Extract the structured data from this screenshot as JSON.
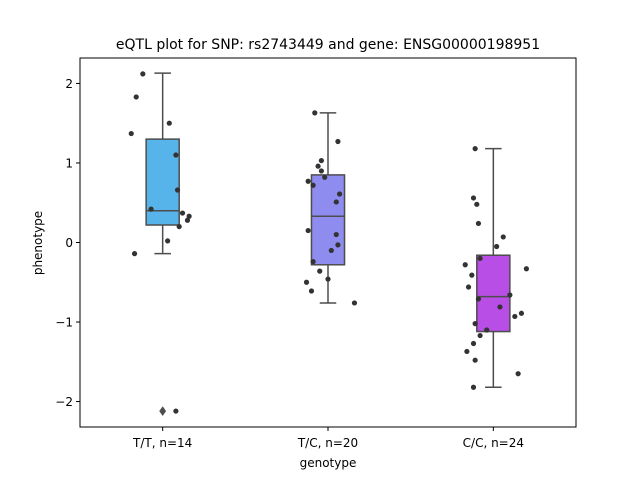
{
  "chart_data": {
    "type": "box",
    "title": "eQTL plot for SNP: rs2743449 and gene: ENSG00000198951",
    "xlabel": "genotype",
    "ylabel": "phenotype",
    "ylim": [
      -2.32,
      2.32
    ],
    "yticks": [
      -2,
      -1,
      0,
      1,
      2
    ],
    "ytick_labels": [
      "−2",
      "−1",
      "0",
      "1",
      "2"
    ],
    "grid": false,
    "categories": [
      "T/T, n=14",
      "T/C, n=20",
      "C/C, n=24"
    ],
    "boxes": [
      {
        "category": "T/T, n=14",
        "color": "#56b4ea",
        "q1": 0.22,
        "median": 0.4,
        "q3": 1.3,
        "whisker_low": -0.14,
        "whisker_high": 2.13,
        "outliers": [
          -2.12
        ]
      },
      {
        "category": "T/C, n=20",
        "color": "#8f8cf0",
        "q1": -0.28,
        "median": 0.33,
        "q3": 0.85,
        "whisker_low": -0.76,
        "whisker_high": 1.63,
        "outliers": []
      },
      {
        "category": "C/C, n=24",
        "color": "#b84ee6",
        "q1": -1.12,
        "median": -0.68,
        "q3": -0.16,
        "whisker_low": -1.82,
        "whisker_high": 1.18,
        "outliers": []
      }
    ],
    "points": [
      {
        "category": "T/T, n=14",
        "values": [
          2.12,
          1.83,
          1.5,
          1.37,
          1.1,
          0.66,
          0.42,
          0.37,
          0.33,
          0.28,
          0.2,
          0.02,
          -0.14,
          -2.12
        ],
        "jitter": [
          -0.12,
          -0.16,
          0.04,
          -0.19,
          0.08,
          0.09,
          -0.07,
          0.12,
          0.16,
          0.15,
          0.1,
          0.03,
          -0.17,
          0.08
        ]
      },
      {
        "category": "T/C, n=20",
        "values": [
          1.63,
          1.27,
          1.03,
          0.96,
          0.9,
          0.82,
          0.77,
          0.72,
          0.61,
          0.51,
          0.15,
          0.1,
          -0.03,
          -0.1,
          -0.24,
          -0.36,
          -0.46,
          -0.5,
          -0.61,
          -0.76
        ],
        "jitter": [
          -0.08,
          0.06,
          -0.04,
          -0.06,
          -0.04,
          -0.02,
          -0.12,
          -0.09,
          0.07,
          0.05,
          -0.12,
          0.05,
          0.06,
          0.02,
          -0.09,
          -0.05,
          0.0,
          -0.13,
          -0.1,
          0.16
        ]
      },
      {
        "category": "C/C, n=24",
        "values": [
          1.18,
          0.56,
          0.48,
          0.24,
          0.07,
          -0.05,
          -0.2,
          -0.28,
          -0.33,
          -0.41,
          -0.56,
          -0.66,
          -0.71,
          -0.81,
          -0.89,
          -0.93,
          -1.02,
          -1.1,
          -1.17,
          -1.27,
          -1.37,
          -1.48,
          -1.65,
          -1.82
        ],
        "jitter": [
          -0.11,
          -0.12,
          -0.1,
          -0.09,
          0.06,
          0.02,
          -0.08,
          -0.17,
          0.2,
          -0.13,
          -0.15,
          0.1,
          -0.09,
          0.04,
          0.17,
          0.13,
          -0.11,
          -0.04,
          -0.08,
          -0.12,
          -0.16,
          -0.11,
          0.15,
          -0.12
        ]
      }
    ]
  }
}
